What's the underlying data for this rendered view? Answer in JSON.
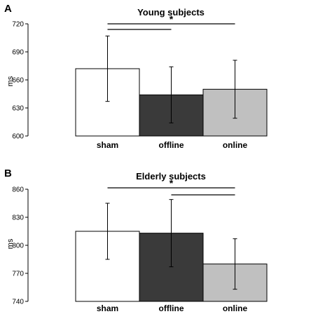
{
  "chart_data": [
    {
      "type": "bar",
      "panel_label": "A",
      "title": "Young subjects",
      "ylabel": "ms",
      "categories": [
        "sham",
        "offline",
        "online"
      ],
      "values": [
        672,
        644,
        650
      ],
      "errors": [
        35,
        30,
        31
      ],
      "colors": [
        "#ffffff",
        "#3a3a3a",
        "#c0c0c0"
      ],
      "ylim": [
        600,
        720
      ],
      "yticks": [
        600,
        630,
        660,
        690,
        720
      ],
      "significance": [
        {
          "from": 0,
          "to": 2,
          "label": "*"
        },
        {
          "from": 0,
          "to": 1,
          "label": ""
        }
      ]
    },
    {
      "type": "bar",
      "panel_label": "B",
      "title": "Elderly subjects",
      "ylabel": "ms",
      "categories": [
        "sham",
        "offline",
        "online"
      ],
      "values": [
        815,
        813,
        780
      ],
      "errors": [
        30,
        36,
        27
      ],
      "colors": [
        "#ffffff",
        "#3a3a3a",
        "#c0c0c0"
      ],
      "ylim": [
        740,
        860
      ],
      "yticks": [
        740,
        770,
        800,
        830,
        860
      ],
      "significance": [
        {
          "from": 0,
          "to": 2,
          "label": "*"
        },
        {
          "from": 1,
          "to": 2,
          "label": ""
        }
      ]
    }
  ]
}
